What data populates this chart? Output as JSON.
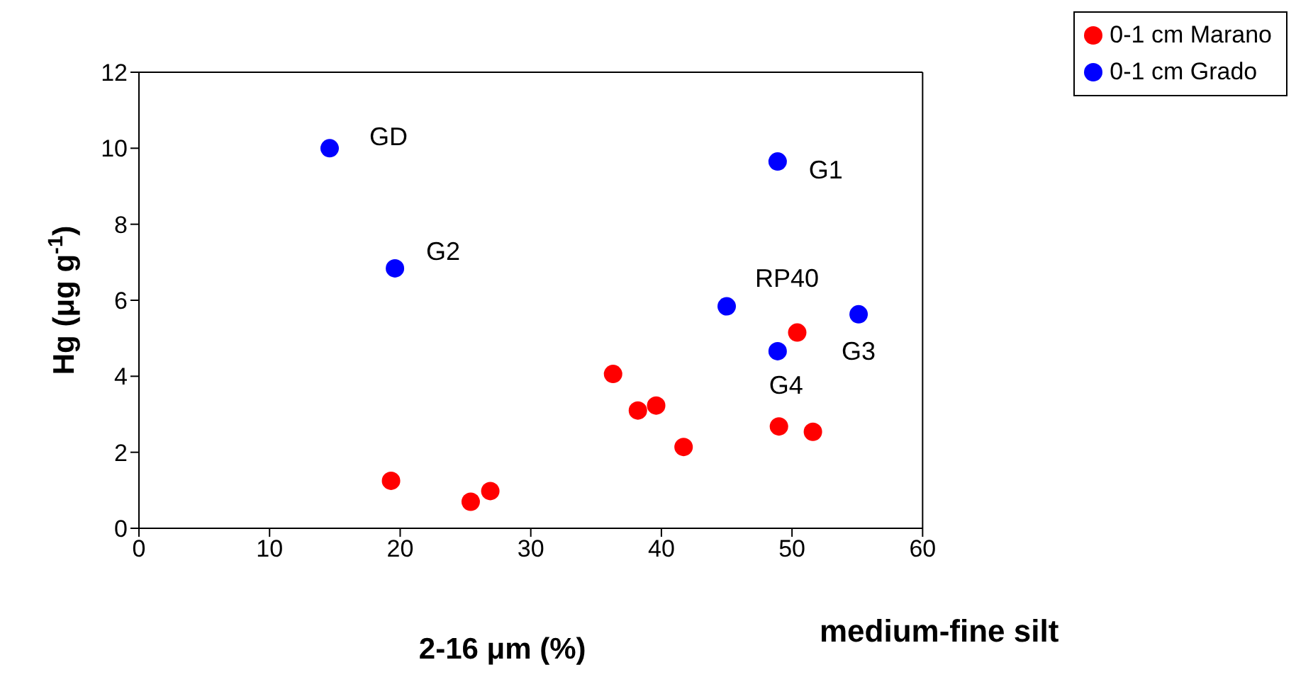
{
  "chart_data": {
    "type": "scatter",
    "ylabel": "Hg (μg g$^{-1}$)",
    "xlabel": "2-16 μm (%)",
    "series": [
      {
        "name": "0-1 cm Marano",
        "color": "#ff0000",
        "x": [
          19.3,
          25.4,
          26.9,
          36.3,
          38.2,
          39.6,
          41.7,
          49.0,
          51.6,
          50.4
        ],
        "values": [
          1.25,
          0.7,
          0.98,
          4.06,
          3.1,
          3.23,
          2.14,
          2.68,
          2.54,
          5.15
        ]
      },
      {
        "name": "0-1 cm Grado",
        "color": "#0000ff",
        "x": [
          14.6,
          19.6,
          48.9,
          45.0,
          55.1,
          48.9
        ],
        "values": [
          10.0,
          6.84,
          9.65,
          5.84,
          5.63,
          4.66
        ]
      }
    ],
    "annotations": [
      {
        "text": "GD",
        "x": 14.6,
        "y": 10.0
      },
      {
        "text": "G2",
        "x": 19.6,
        "y": 6.84
      },
      {
        "text": "G1",
        "x": 48.9,
        "y": 9.65
      },
      {
        "text": "RP40",
        "x": 45.0,
        "y": 5.84
      },
      {
        "text": "G3",
        "x": 55.1,
        "y": 5.63
      },
      {
        "text": "G4",
        "x": 48.9,
        "y": 4.66
      },
      "medium-fine silt"
    ],
    "xlim": [
      0,
      60
    ],
    "xticks": [
      0,
      10,
      20,
      30,
      40,
      50,
      60
    ],
    "ylim": [
      0,
      12
    ],
    "yticks": [
      0,
      2,
      4,
      6,
      8,
      10,
      12
    ],
    "marker": "circle",
    "legend": "top right",
    "grid": false
  }
}
